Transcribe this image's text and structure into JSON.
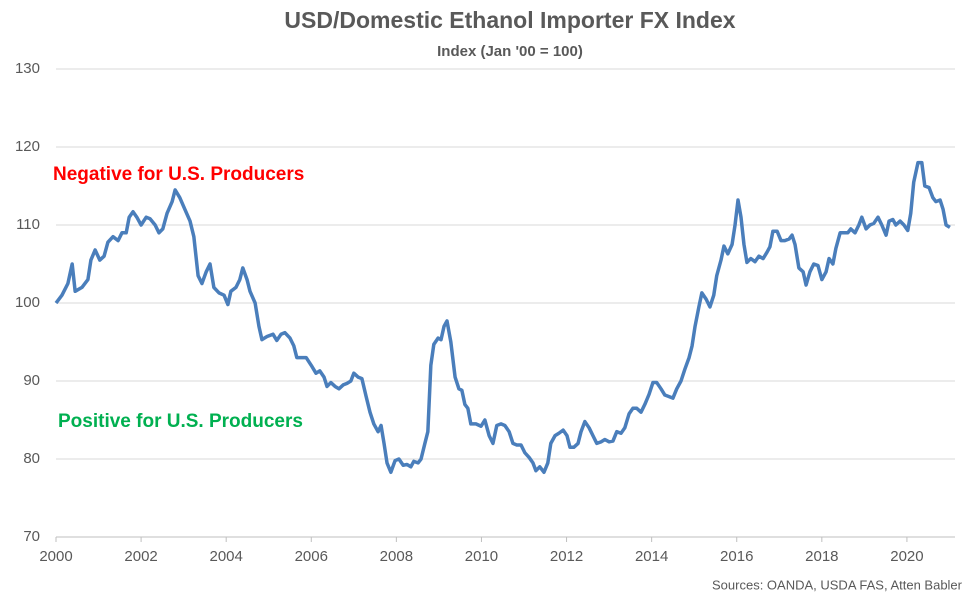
{
  "chart_data": {
    "type": "line",
    "title": "USD/Domestic Ethanol Importer FX Index",
    "subtitle": "Index (Jan '00 = 100)",
    "annotations": [
      {
        "text": "Negative for U.S. Producers",
        "color": "#ff0000"
      },
      {
        "text": "Positive for U.S. Producers",
        "color": "#00b050"
      }
    ],
    "source": "Sources: OANDA, USDA FAS, Atten Babler",
    "x": [
      2000.0,
      2000.14,
      2000.28,
      2000.38,
      2000.45,
      2000.61,
      2000.75,
      2000.82,
      2000.92,
      2001.03,
      2001.13,
      2001.22,
      2001.34,
      2001.46,
      2001.55,
      2001.65,
      2001.72,
      2001.81,
      2001.9,
      2002.0,
      2002.12,
      2002.21,
      2002.33,
      2002.42,
      2002.51,
      2002.61,
      2002.73,
      2002.8,
      2002.91,
      2003.03,
      2003.15,
      2003.24,
      2003.34,
      2003.43,
      2003.53,
      2003.62,
      2003.71,
      2003.83,
      2003.95,
      2004.04,
      2004.11,
      2004.23,
      2004.32,
      2004.39,
      2004.49,
      2004.56,
      2004.68,
      2004.77,
      2004.84,
      2004.96,
      2005.1,
      2005.19,
      2005.29,
      2005.38,
      2005.5,
      2005.59,
      2005.66,
      2005.78,
      2005.88,
      2006.0,
      2006.11,
      2006.2,
      2006.3,
      2006.37,
      2006.46,
      2006.56,
      2006.65,
      2006.75,
      2006.84,
      2006.93,
      2007.0,
      2007.1,
      2007.19,
      2007.29,
      2007.38,
      2007.47,
      2007.57,
      2007.64,
      2007.71,
      2007.78,
      2007.87,
      2007.97,
      2008.06,
      2008.16,
      2008.25,
      2008.34,
      2008.41,
      2008.51,
      2008.58,
      2008.67,
      2008.74,
      2008.81,
      2008.88,
      2008.98,
      2009.05,
      2009.12,
      2009.19,
      2009.28,
      2009.38,
      2009.47,
      2009.54,
      2009.61,
      2009.68,
      2009.75,
      2009.87,
      2009.99,
      2010.08,
      2010.18,
      2010.27,
      2010.36,
      2010.46,
      2010.55,
      2010.65,
      2010.74,
      2010.83,
      2010.93,
      2011.02,
      2011.12,
      2011.21,
      2011.28,
      2011.37,
      2011.47,
      2011.56,
      2011.63,
      2011.73,
      2011.82,
      2011.92,
      2012.01,
      2012.08,
      2012.17,
      2012.27,
      2012.34,
      2012.43,
      2012.53,
      2012.62,
      2012.71,
      2012.81,
      2012.9,
      2013.0,
      2013.09,
      2013.18,
      2013.28,
      2013.37,
      2013.47,
      2013.56,
      2013.65,
      2013.75,
      2013.84,
      2013.94,
      2014.03,
      2014.12,
      2014.22,
      2014.31,
      2014.41,
      2014.5,
      2014.59,
      2014.69,
      2014.78,
      2014.88,
      2014.95,
      2015.02,
      2015.11,
      2015.18,
      2015.28,
      2015.37,
      2015.46,
      2015.53,
      2015.63,
      2015.7,
      2015.79,
      2015.89,
      2015.96,
      2016.03,
      2016.1,
      2016.17,
      2016.24,
      2016.33,
      2016.43,
      2016.52,
      2016.62,
      2016.71,
      2016.78,
      2016.85,
      2016.95,
      2017.04,
      2017.13,
      2017.23,
      2017.3,
      2017.37,
      2017.46,
      2017.56,
      2017.63,
      2017.72,
      2017.81,
      2017.91,
      2018.0,
      2018.1,
      2018.17,
      2018.26,
      2018.33,
      2018.43,
      2018.52,
      2018.61,
      2018.68,
      2018.78,
      2018.87,
      2018.94,
      2019.04,
      2019.13,
      2019.22,
      2019.32,
      2019.41,
      2019.51,
      2019.58,
      2019.67,
      2019.74,
      2019.84,
      2019.93,
      2020.02,
      2020.09,
      2020.16,
      2020.26,
      2020.35,
      2020.42,
      2020.52,
      2020.61,
      2020.68,
      2020.78,
      2020.85,
      2020.92,
      2021.01
    ],
    "series": [
      {
        "name": "USD/Domestic Ethanol Importer FX Index",
        "color": "#4a7ebb",
        "values": [
          100,
          101,
          102.5,
          105,
          101.5,
          102,
          103,
          105.5,
          106.8,
          105.5,
          106,
          107.8,
          108.5,
          108,
          109,
          109,
          111,
          111.7,
          111,
          110,
          111,
          110.8,
          110,
          109,
          109.5,
          111.5,
          113,
          114.5,
          113.5,
          112,
          110.5,
          108.5,
          103.5,
          102.5,
          104,
          105,
          102,
          101.3,
          101,
          99.8,
          101.5,
          102,
          103,
          104.5,
          103,
          101.5,
          100,
          97,
          95.3,
          95.7,
          96,
          95.2,
          96,
          96.2,
          95.5,
          94.5,
          93,
          93,
          93,
          92,
          91,
          91.3,
          90.5,
          89.3,
          89.8,
          89.3,
          89,
          89.5,
          89.7,
          90,
          91,
          90.5,
          90.3,
          88,
          86,
          84.5,
          83.5,
          84.3,
          82,
          79.5,
          78.3,
          79.8,
          80,
          79.2,
          79.3,
          79,
          79.7,
          79.5,
          80,
          82,
          83.5,
          92,
          94.7,
          95.5,
          95.3,
          97,
          97.7,
          95,
          90.5,
          89,
          88.8,
          87,
          86.5,
          84.5,
          84.5,
          84.2,
          85,
          83,
          82,
          84.3,
          84.5,
          84.3,
          83.5,
          82,
          81.8,
          81.8,
          80.8,
          80.2,
          79.5,
          78.5,
          79,
          78.3,
          79.5,
          82,
          83,
          83.3,
          83.7,
          83,
          81.5,
          81.5,
          82,
          83.5,
          84.8,
          84,
          83,
          82,
          82.2,
          82.5,
          82.2,
          82.3,
          83.5,
          83.3,
          84,
          85.8,
          86.5,
          86.5,
          86,
          87,
          88.3,
          89.8,
          89.8,
          89,
          88.2,
          88,
          87.8,
          89,
          90,
          91.5,
          93,
          94.5,
          97,
          99.5,
          101.3,
          100.5,
          99.5,
          101,
          103.5,
          105.5,
          107.3,
          106.3,
          107.5,
          110,
          113.2,
          111,
          107.5,
          105.2,
          105.7,
          105.3,
          106,
          105.7,
          106.5,
          107.2,
          109.2,
          109.2,
          108,
          108,
          108.2,
          108.7,
          107.5,
          104.5,
          104,
          102.3,
          104,
          105,
          104.8,
          103,
          104,
          105.7,
          105,
          107,
          109,
          109,
          109,
          109.5,
          109,
          110,
          111,
          109.5,
          110,
          110.2,
          111,
          110,
          108.7,
          110.5,
          110.7,
          110,
          110.5,
          110,
          109.3,
          111.5,
          115.5,
          118,
          118,
          115,
          114.8,
          113.5,
          113,
          113.2,
          112,
          110,
          109.7
        ]
      }
    ],
    "xlim": [
      2000,
      2021.13
    ],
    "xticks": [
      2000,
      2002,
      2004,
      2006,
      2008,
      2010,
      2012,
      2014,
      2016,
      2018,
      2020
    ],
    "ylim": [
      70,
      130
    ],
    "yticks": [
      70,
      80,
      90,
      100,
      110,
      120,
      130
    ],
    "grid": true
  }
}
